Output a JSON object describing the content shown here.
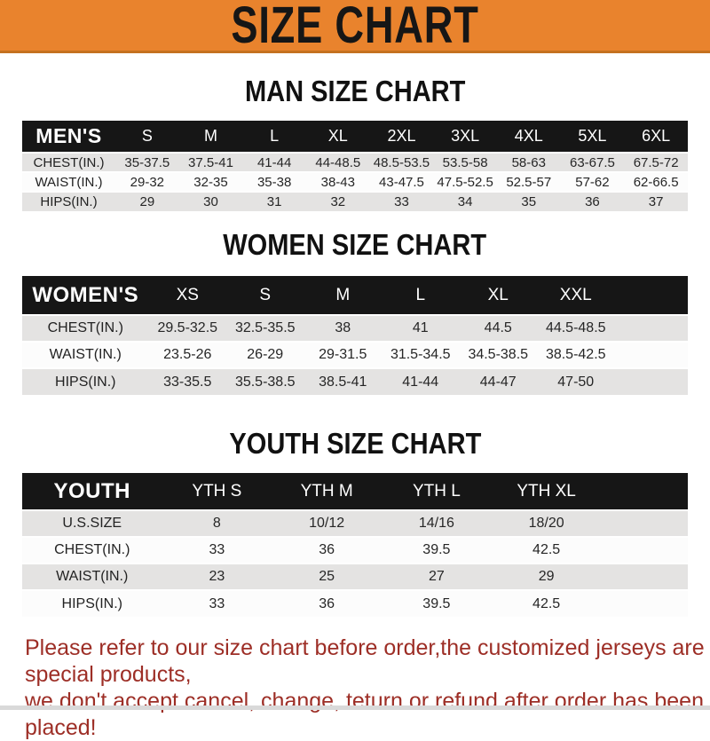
{
  "banner": {
    "title": "SIZE CHART",
    "bg_color": "#E9832D",
    "text_color": "#161616"
  },
  "sections": [
    {
      "key": "men",
      "heading": "MAN SIZE CHART",
      "group_label": "MEN'S",
      "columns": [
        "S",
        "M",
        "L",
        "XL",
        "2XL",
        "3XL",
        "4XL",
        "5XL",
        "6XL"
      ],
      "rows": [
        {
          "label": "CHEST(IN.)",
          "values": [
            "35-37.5",
            "37.5-41",
            "41-44",
            "44-48.5",
            "48.5-53.5",
            "53.5-58",
            "58-63",
            "63-67.5",
            "67.5-72"
          ]
        },
        {
          "label": "WAIST(IN.)",
          "values": [
            "29-32",
            "32-35",
            "35-38",
            "38-43",
            "43-47.5",
            "47.5-52.5",
            "52.5-57",
            "57-62",
            "62-66.5"
          ]
        },
        {
          "label": "HIPS(IN.)",
          "values": [
            "29",
            "30",
            "31",
            "32",
            "33",
            "34",
            "35",
            "36",
            "37"
          ]
        }
      ]
    },
    {
      "key": "women",
      "heading": "WOMEN SIZE CHART",
      "group_label": "WOMEN'S",
      "columns": [
        "XS",
        "S",
        "M",
        "L",
        "XL",
        "XXL"
      ],
      "rows": [
        {
          "label": "CHEST(IN.)",
          "values": [
            "29.5-32.5",
            "32.5-35.5",
            "38",
            "41",
            "44.5",
            "44.5-48.5"
          ]
        },
        {
          "label": "WAIST(IN.)",
          "values": [
            "23.5-26",
            "26-29",
            "29-31.5",
            "31.5-34.5",
            "34.5-38.5",
            "38.5-42.5"
          ]
        },
        {
          "label": "HIPS(IN.)",
          "values": [
            "33-35.5",
            "35.5-38.5",
            "38.5-41",
            "41-44",
            "44-47",
            "47-50"
          ]
        }
      ]
    },
    {
      "key": "youth",
      "heading": "YOUTH SIZE CHART",
      "group_label": "YOUTH",
      "columns": [
        "YTH S",
        "YTH M",
        "YTH L",
        "YTH XL"
      ],
      "rows": [
        {
          "label": "U.S.SIZE",
          "values": [
            "8",
            "10/12",
            "14/16",
            "18/20"
          ]
        },
        {
          "label": "CHEST(IN.)",
          "values": [
            "33",
            "36",
            "39.5",
            "42.5"
          ]
        },
        {
          "label": "WAIST(IN.)",
          "values": [
            "23",
            "25",
            "27",
            "29"
          ]
        },
        {
          "label": "HIPS(IN.)",
          "values": [
            "33",
            "36",
            "39.5",
            "42.5"
          ]
        }
      ]
    }
  ],
  "footer": {
    "line1": "Please refer to our size chart before order,the customized jerseys are special products,",
    "line2": "we don't accept cancel, change, teturn or refund after order has been placed!",
    "text_color": "#9D2E26"
  },
  "table_colors": {
    "header_bar": "#161616",
    "stripe_gray": "#E4E3E2",
    "stripe_white": "#FCFCFC"
  }
}
